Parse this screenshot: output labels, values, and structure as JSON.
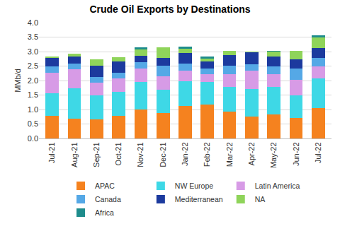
{
  "chart_data": {
    "type": "bar",
    "stacked": true,
    "title": "Crude Oil Exports by Destinations",
    "y_label": "MMb/d",
    "categories": [
      "Jul-21",
      "Aug-21",
      "Sep-21",
      "Oct-21",
      "Nov-21",
      "Dec-21",
      "Jan-22",
      "Feb-22",
      "Mar-22",
      "Apr-22",
      "May-22",
      "Jun-22",
      "Jul-22"
    ],
    "series": [
      {
        "name": "APAC",
        "color": "#F5821F",
        "values": [
          0.77,
          0.68,
          0.65,
          0.78,
          1.0,
          0.88,
          1.13,
          1.17,
          0.93,
          0.75,
          0.82,
          0.71,
          1.05
        ]
      },
      {
        "name": "NW Europe",
        "color": "#3ED8E6",
        "values": [
          0.78,
          1.05,
          0.83,
          0.84,
          0.95,
          0.8,
          0.84,
          0.78,
          0.85,
          0.95,
          0.96,
          0.78,
          1.02
        ]
      },
      {
        "name": "Latin America",
        "color": "#D79BE6",
        "values": [
          0.72,
          0.65,
          0.45,
          0.45,
          0.46,
          0.46,
          0.36,
          0.28,
          0.44,
          0.63,
          0.44,
          0.53,
          0.41
        ]
      },
      {
        "name": "Canada",
        "color": "#55A8E6",
        "values": [
          0.21,
          0.2,
          0.2,
          0.21,
          0.22,
          0.37,
          0.25,
          0.19,
          0.3,
          0.24,
          0.28,
          0.4,
          0.29
        ]
      },
      {
        "name": "Mediterranean",
        "color": "#1C3A9E",
        "values": [
          0.29,
          0.25,
          0.39,
          0.37,
          0.22,
          0.27,
          0.37,
          0.24,
          0.36,
          0.4,
          0.32,
          0.31,
          0.36
        ]
      },
      {
        "name": "NA",
        "color": "#8FD45A",
        "values": [
          0.07,
          0.1,
          0.2,
          0.15,
          0.23,
          0.36,
          0.15,
          0.1,
          0.14,
          0.02,
          0.18,
          0.29,
          0.35
        ]
      },
      {
        "name": "Africa",
        "color": "#1E8C8C",
        "values": [
          0,
          0,
          0,
          0,
          0.07,
          0,
          0.08,
          0.08,
          0,
          0,
          0.02,
          0,
          0.07
        ]
      }
    ],
    "ylim": [
      0,
      4
    ],
    "yticks": [
      {
        "value": 0,
        "label": "0.0"
      },
      0.5,
      {
        "value": 1,
        "label": "1.0"
      },
      1.5,
      {
        "value": 2,
        "label": "2.0"
      },
      2.5,
      {
        "value": 3,
        "label": "3.0"
      },
      3.5,
      {
        "value": 4,
        "label": "4.0"
      }
    ],
    "grid": true,
    "legend": "bottom"
  }
}
